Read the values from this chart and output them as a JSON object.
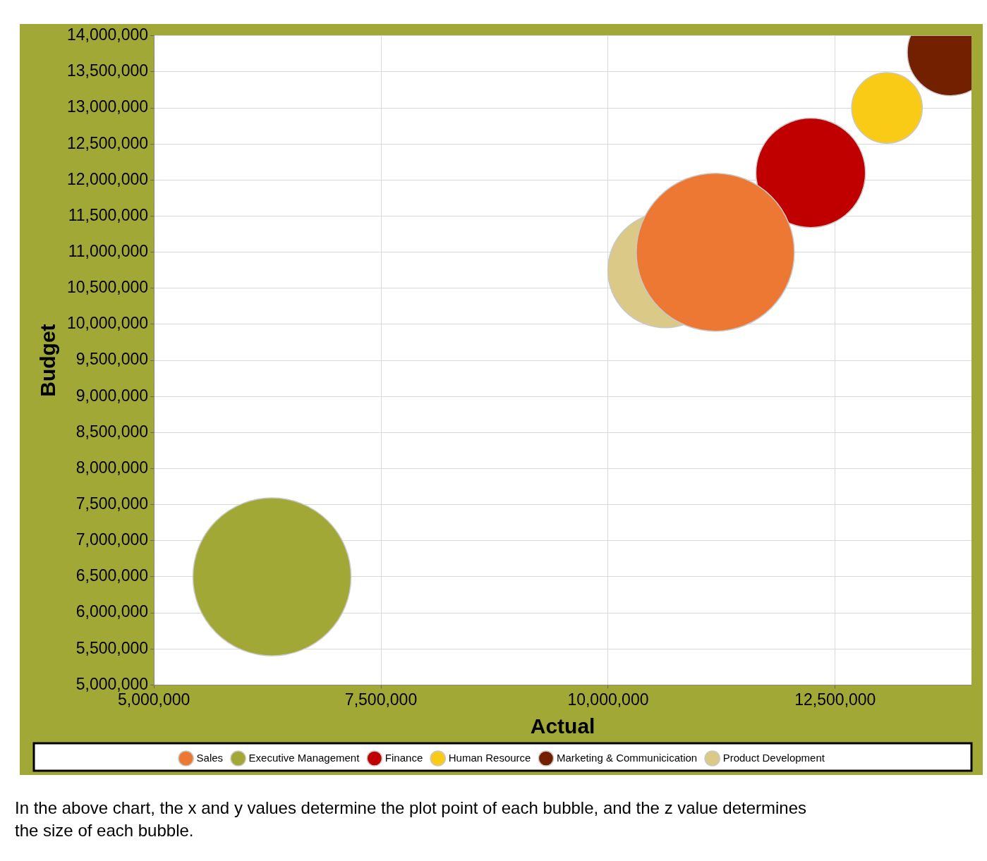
{
  "chart_data": {
    "type": "bubble",
    "xlabel": "Actual",
    "ylabel": "Budget",
    "xlim": [
      5000000,
      14000000
    ],
    "xticks": [
      {
        "value": 5000000,
        "label": "5,000,000"
      },
      {
        "value": 7500000,
        "label": "7,500,000"
      },
      {
        "value": 10000000,
        "label": "10,000,000"
      },
      {
        "value": 12500000,
        "label": "12,500,000"
      }
    ],
    "ylim": [
      5000000,
      14000000
    ],
    "yticks": [
      {
        "value": 5000000,
        "label": "5,000,000"
      },
      {
        "value": 5500000,
        "label": "5,500,000"
      },
      {
        "value": 6000000,
        "label": "6,000,000"
      },
      {
        "value": 6500000,
        "label": "6,500,000"
      },
      {
        "value": 7000000,
        "label": "7,000,000"
      },
      {
        "value": 7500000,
        "label": "7,500,000"
      },
      {
        "value": 8000000,
        "label": "8,000,000"
      },
      {
        "value": 8500000,
        "label": "8,500,000"
      },
      {
        "value": 9000000,
        "label": "9,000,000"
      },
      {
        "value": 9500000,
        "label": "9,500,000"
      },
      {
        "value": 10000000,
        "label": "10,000,000"
      },
      {
        "value": 10500000,
        "label": "10,500,000"
      },
      {
        "value": 11000000,
        "label": "11,000,000"
      },
      {
        "value": 11500000,
        "label": "11,500,000"
      },
      {
        "value": 12000000,
        "label": "12,000,000"
      },
      {
        "value": 12500000,
        "label": "12,500,000"
      },
      {
        "value": 13000000,
        "label": "13,000,000"
      },
      {
        "value": 13500000,
        "label": "13,500,000"
      },
      {
        "value": 14000000,
        "label": "14,000,000"
      }
    ],
    "grid": true,
    "legend": "bottom",
    "marker": "circle",
    "series": [
      {
        "name": "Sales",
        "color": "#ed7834",
        "x": [
          11180000
        ],
        "values": [
          11000000
        ],
        "sizes": [
          1
        ]
      },
      {
        "name": "Executive Management",
        "color": "#a2a836",
        "x": [
          6300000
        ],
        "values": [
          6500000
        ],
        "sizes": [
          1
        ]
      },
      {
        "name": "Finance",
        "color": "#c00000",
        "x": [
          12230000
        ],
        "values": [
          12100000
        ],
        "sizes": [
          0.48
        ]
      },
      {
        "name": "Human Resource",
        "color": "#f9cb16",
        "x": [
          13070000
        ],
        "values": [
          13000000
        ],
        "sizes": [
          0.2
        ]
      },
      {
        "name": "Marketing & Communicication",
        "color": "#732000",
        "x": [
          13770000
        ],
        "values": [
          13770000
        ],
        "sizes": [
          0.3
        ]
      },
      {
        "name": "Product Development",
        "color": "#dbc987",
        "x": [
          10630000
        ],
        "values": [
          10750000
        ],
        "sizes": [
          0.53
        ]
      }
    ],
    "annotations": [
      "In the above chart, the x and y values determine the plot point of each bubble, and the z value determines the size of each bubble."
    ]
  }
}
